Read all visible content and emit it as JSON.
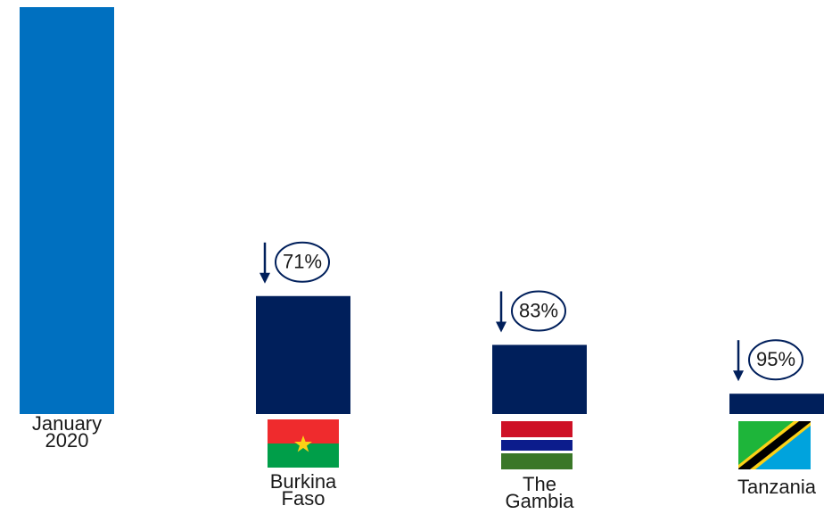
{
  "chart_data": {
    "type": "bar",
    "categories": [
      "January 2020",
      "Burkina Faso",
      "The Gambia",
      "Tanzania"
    ],
    "values": [
      100,
      29,
      17,
      5
    ],
    "colors": [
      "#0070c0",
      "#001f5b",
      "#001f5b",
      "#001f5b"
    ],
    "annotations": [
      "71%",
      "83%",
      "95%"
    ]
  }
}
